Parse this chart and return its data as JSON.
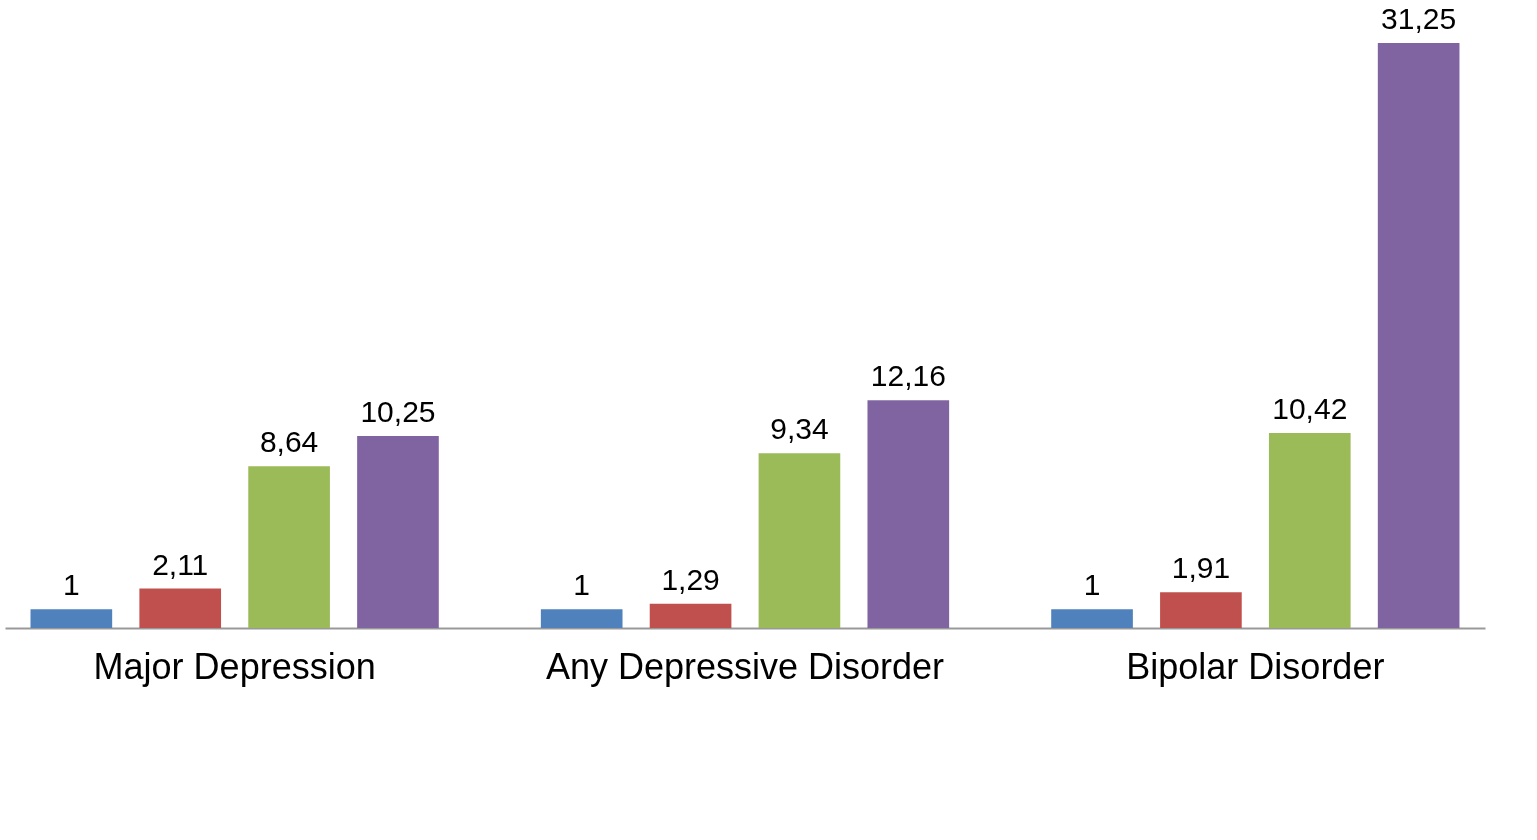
{
  "chart_data": {
    "type": "bar",
    "categories": [
      "Major Depression",
      "Any Depressive Disorder",
      "Bipolar Disorder"
    ],
    "series": [
      {
        "color": "#4f81bd",
        "values": [
          1,
          1,
          1
        ],
        "value_labels": [
          "1",
          "1",
          "1"
        ]
      },
      {
        "color": "#c0504d",
        "values": [
          2.11,
          1.29,
          1.91
        ],
        "value_labels": [
          "2,11",
          "1,29",
          "1,91"
        ]
      },
      {
        "color": "#9bbb59",
        "values": [
          8.64,
          9.34,
          10.42
        ],
        "value_labels": [
          "8,64",
          "9,34",
          "10,42"
        ]
      },
      {
        "color": "#8064a2",
        "values": [
          10.25,
          12.16,
          31.25
        ],
        "value_labels": [
          "10,25",
          "12,16",
          "31,25"
        ]
      }
    ],
    "grid": false,
    "legend": false
  }
}
